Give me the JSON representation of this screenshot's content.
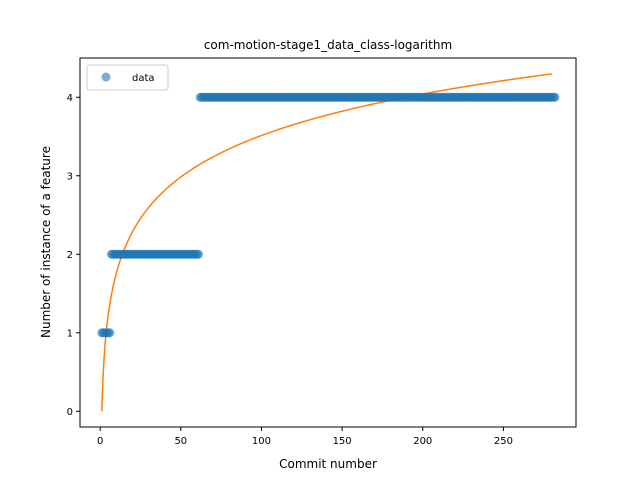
{
  "chart_data": {
    "type": "scatter",
    "title": "com-motion-stage1_data_class-logarithm",
    "xlabel": "Commit number",
    "ylabel": "Number of instance of a feature",
    "xlim": [
      -12.5,
      295
    ],
    "ylim": [
      -0.2,
      4.5
    ],
    "xticks": [
      0,
      50,
      100,
      150,
      200,
      250
    ],
    "yticks": [
      0,
      1,
      2,
      3,
      4
    ],
    "legend": {
      "position": "top-left",
      "entries": [
        "data"
      ]
    },
    "series": [
      {
        "name": "data",
        "kind": "points",
        "color": "#1f77b4",
        "segments": [
          {
            "x_start": 1,
            "x_end": 6,
            "y": 1
          },
          {
            "x_start": 7,
            "x_end": 61,
            "y": 2
          },
          {
            "x_start": 62,
            "x_end": 282,
            "y": 4
          }
        ]
      },
      {
        "kind": "fit-line",
        "model": "logarithmic",
        "color": "#ff7f0e",
        "x_range": [
          1,
          280
        ],
        "y_range": [
          0,
          4.3
        ],
        "a": 0.7628,
        "b": 0
      }
    ]
  }
}
